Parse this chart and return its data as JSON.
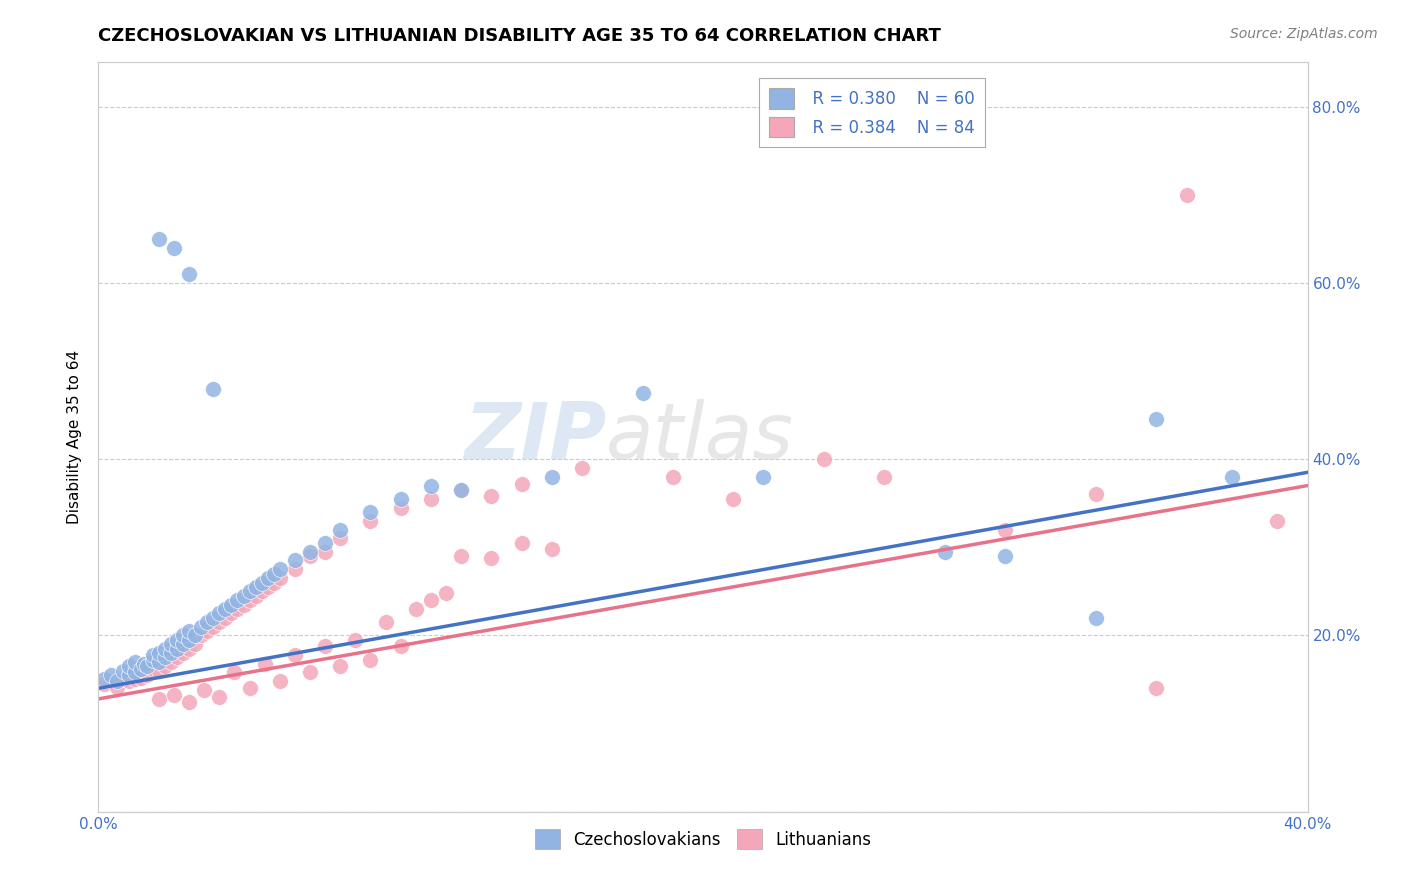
{
  "title": "CZECHOSLOVAKIAN VS LITHUANIAN DISABILITY AGE 35 TO 64 CORRELATION CHART",
  "source_text": "Source: ZipAtlas.com",
  "ylabel": "Disability Age 35 to 64",
  "xlim": [
    0.0,
    0.4
  ],
  "ylim": [
    0.0,
    0.85
  ],
  "xticks": [
    0.0,
    0.05,
    0.1,
    0.15,
    0.2,
    0.25,
    0.3,
    0.35,
    0.4
  ],
  "xtick_labels": [
    "0.0%",
    "",
    "",
    "",
    "",
    "",
    "",
    "",
    "40.0%"
  ],
  "yticks": [
    0.0,
    0.2,
    0.4,
    0.6,
    0.8
  ],
  "ytick_labels": [
    "",
    "20.0%",
    "40.0%",
    "60.0%",
    "80.0%"
  ],
  "blue_R": "R = 0.380",
  "blue_N": "N = 60",
  "pink_R": "R = 0.384",
  "pink_N": "N = 84",
  "blue_color": "#92b4e3",
  "pink_color": "#f4a7b9",
  "blue_line_color": "#4472c4",
  "pink_line_color": "#e8728a",
  "legend_label_blue": "Czechoslovakians",
  "legend_label_pink": "Lithuanians",
  "watermark_zip": "ZIP",
  "watermark_atlas": "atlas",
  "blue_scatter_x": [
    0.002,
    0.004,
    0.006,
    0.008,
    0.01,
    0.01,
    0.012,
    0.012,
    0.014,
    0.015,
    0.016,
    0.018,
    0.018,
    0.02,
    0.02,
    0.022,
    0.022,
    0.024,
    0.024,
    0.026,
    0.026,
    0.028,
    0.028,
    0.03,
    0.03,
    0.032,
    0.034,
    0.036,
    0.038,
    0.04,
    0.042,
    0.044,
    0.046,
    0.048,
    0.05,
    0.052,
    0.054,
    0.056,
    0.058,
    0.06,
    0.065,
    0.07,
    0.075,
    0.08,
    0.09,
    0.1,
    0.11,
    0.12,
    0.15,
    0.18,
    0.22,
    0.28,
    0.3,
    0.33,
    0.35,
    0.375,
    0.02,
    0.025,
    0.03,
    0.038
  ],
  "blue_scatter_y": [
    0.15,
    0.155,
    0.148,
    0.16,
    0.155,
    0.165,
    0.158,
    0.17,
    0.162,
    0.168,
    0.165,
    0.172,
    0.178,
    0.17,
    0.18,
    0.175,
    0.185,
    0.18,
    0.19,
    0.185,
    0.195,
    0.19,
    0.2,
    0.195,
    0.205,
    0.2,
    0.21,
    0.215,
    0.22,
    0.225,
    0.23,
    0.235,
    0.24,
    0.245,
    0.25,
    0.255,
    0.26,
    0.265,
    0.27,
    0.275,
    0.285,
    0.295,
    0.305,
    0.32,
    0.34,
    0.355,
    0.37,
    0.365,
    0.38,
    0.475,
    0.38,
    0.295,
    0.29,
    0.22,
    0.445,
    0.38,
    0.65,
    0.64,
    0.61,
    0.48
  ],
  "pink_scatter_x": [
    0.002,
    0.004,
    0.006,
    0.008,
    0.01,
    0.01,
    0.012,
    0.012,
    0.014,
    0.015,
    0.016,
    0.018,
    0.018,
    0.02,
    0.02,
    0.022,
    0.022,
    0.024,
    0.024,
    0.026,
    0.026,
    0.028,
    0.028,
    0.03,
    0.03,
    0.032,
    0.034,
    0.036,
    0.038,
    0.04,
    0.042,
    0.044,
    0.046,
    0.048,
    0.05,
    0.052,
    0.054,
    0.056,
    0.058,
    0.06,
    0.065,
    0.07,
    0.075,
    0.08,
    0.09,
    0.1,
    0.11,
    0.12,
    0.13,
    0.14,
    0.16,
    0.19,
    0.21,
    0.24,
    0.26,
    0.3,
    0.33,
    0.35,
    0.36,
    0.39,
    0.02,
    0.025,
    0.03,
    0.035,
    0.04,
    0.045,
    0.05,
    0.055,
    0.06,
    0.065,
    0.07,
    0.075,
    0.08,
    0.085,
    0.09,
    0.095,
    0.1,
    0.105,
    0.11,
    0.115,
    0.12,
    0.13,
    0.14,
    0.15
  ],
  "pink_scatter_y": [
    0.145,
    0.148,
    0.142,
    0.15,
    0.148,
    0.155,
    0.15,
    0.158,
    0.152,
    0.16,
    0.155,
    0.162,
    0.168,
    0.16,
    0.172,
    0.165,
    0.175,
    0.17,
    0.18,
    0.175,
    0.185,
    0.18,
    0.19,
    0.185,
    0.195,
    0.19,
    0.2,
    0.205,
    0.21,
    0.215,
    0.22,
    0.225,
    0.23,
    0.235,
    0.24,
    0.245,
    0.25,
    0.255,
    0.26,
    0.265,
    0.275,
    0.29,
    0.295,
    0.31,
    0.33,
    0.345,
    0.355,
    0.365,
    0.358,
    0.372,
    0.39,
    0.38,
    0.355,
    0.4,
    0.38,
    0.32,
    0.36,
    0.14,
    0.7,
    0.33,
    0.128,
    0.132,
    0.125,
    0.138,
    0.13,
    0.158,
    0.14,
    0.168,
    0.148,
    0.178,
    0.158,
    0.188,
    0.165,
    0.195,
    0.172,
    0.215,
    0.188,
    0.23,
    0.24,
    0.248,
    0.29,
    0.288,
    0.305,
    0.298
  ],
  "blue_line_x": [
    0.0,
    0.4
  ],
  "blue_line_y": [
    0.14,
    0.385
  ],
  "pink_line_x": [
    0.0,
    0.4
  ],
  "pink_line_y": [
    0.128,
    0.37
  ],
  "title_fontsize": 13,
  "axis_label_fontsize": 11,
  "tick_fontsize": 11,
  "legend_fontsize": 12,
  "source_fontsize": 10,
  "background_color": "#ffffff",
  "grid_color": "#cccccc",
  "tick_color": "#4472c4",
  "axis_color": "#cccccc"
}
